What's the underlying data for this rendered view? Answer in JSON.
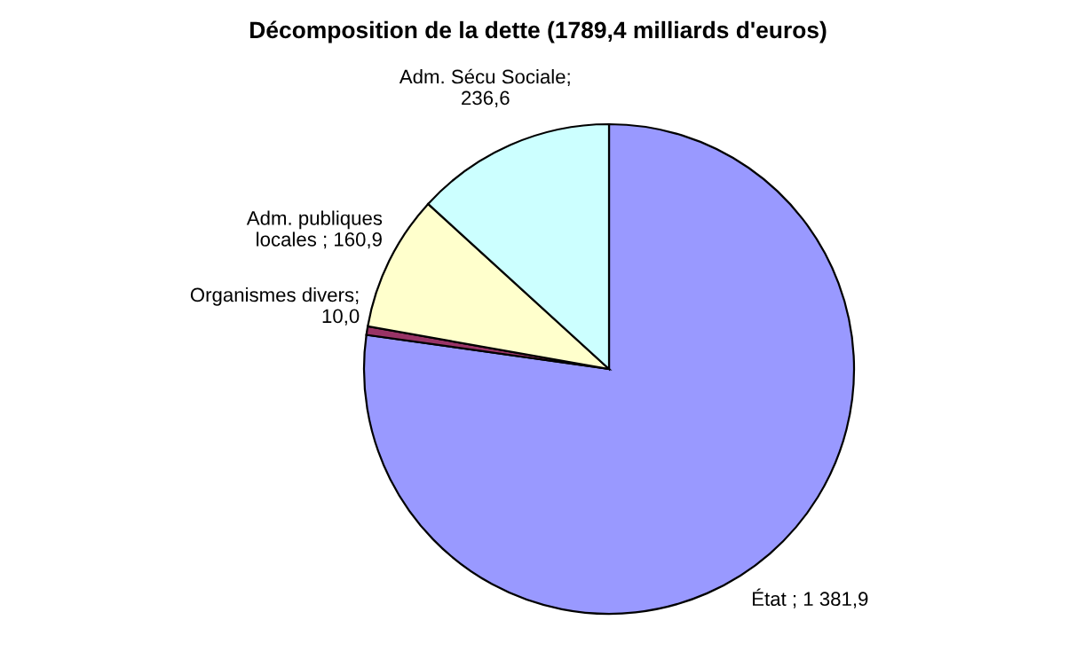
{
  "chart_data": {
    "type": "pie",
    "title": "Décomposition de la dette (1789,4 milliards d'euros)",
    "categories": [
      "État",
      "Organismes divers",
      "Adm. publiques\nlocales",
      "Adm. Sécu Sociale"
    ],
    "values": [
      1381.9,
      10.0,
      160.9,
      236.6
    ],
    "colors": [
      "#9999ff",
      "#993366",
      "#ffffcc",
      "#ccffff"
    ],
    "value_labels": [
      " ; 1 381,9",
      ";\n10,0",
      " ; 160,9",
      ";\n236,6"
    ],
    "legend": false
  }
}
